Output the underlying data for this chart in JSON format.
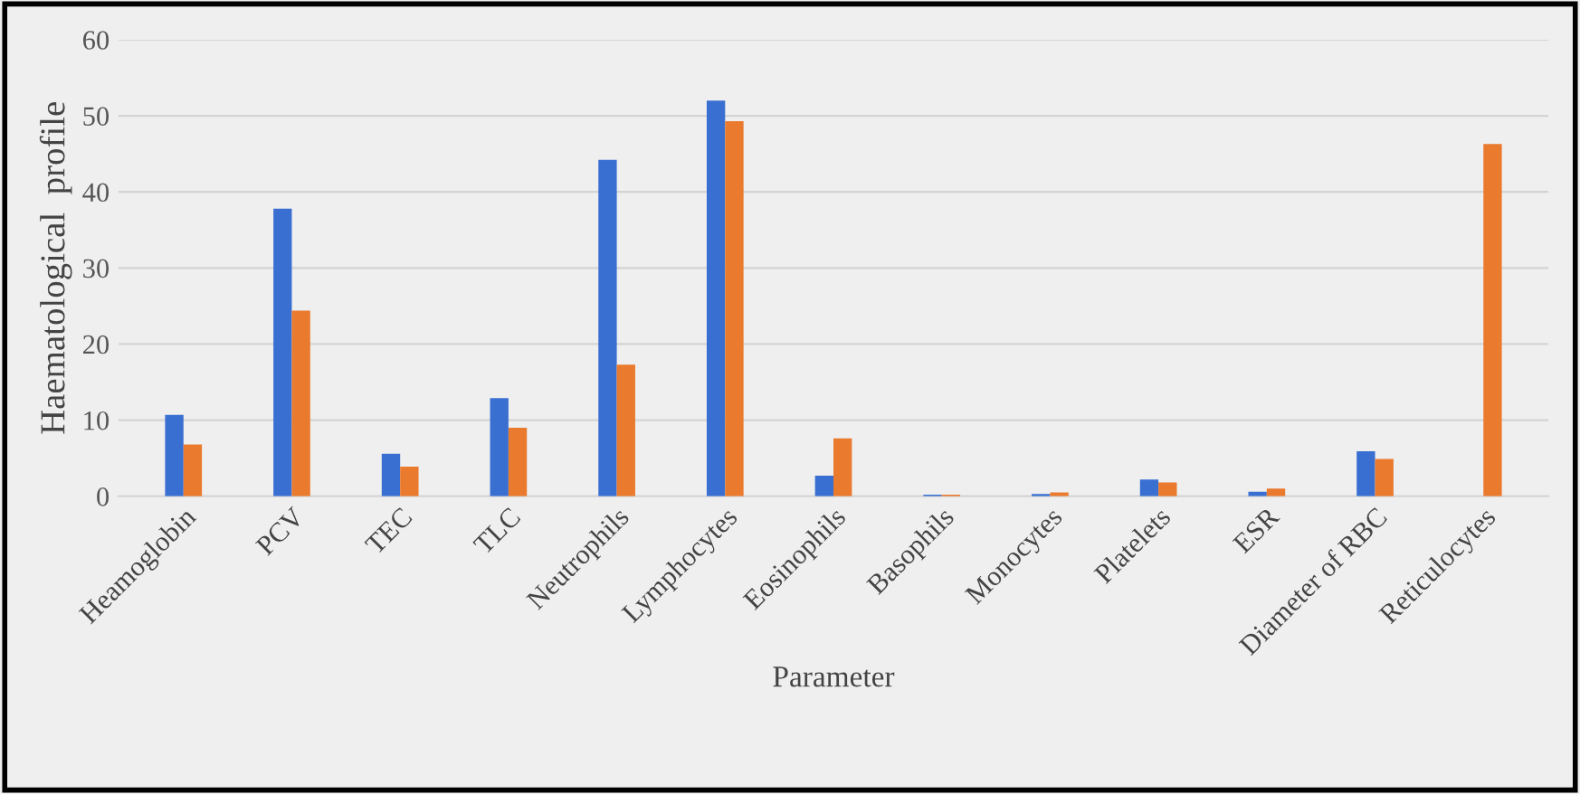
{
  "chart_data": {
    "type": "bar",
    "xlabel": "Parameter",
    "ylabel": "Haematological  profile",
    "categories": [
      "Heamoglobin",
      "PCV",
      "TEC",
      "TLC",
      "Neutrophils",
      "Lymphocytes",
      "Eosinophils",
      "Basophils",
      "Monocytes",
      "Platelets",
      "ESR",
      "Diameter of RBC",
      "Reticulocytes"
    ],
    "series": [
      {
        "color": "#3a6fd2",
        "values": [
          10.7,
          37.8,
          5.6,
          12.9,
          44.2,
          52,
          2.7,
          0.2,
          0.3,
          2.2,
          0.6,
          5.9,
          0
        ]
      },
      {
        "color": "#ea7a2e",
        "values": [
          6.8,
          24.4,
          3.9,
          9,
          17.3,
          49.3,
          7.6,
          0.2,
          0.5,
          1.8,
          1,
          4.9,
          46.3
        ]
      }
    ],
    "ylim": [
      0,
      60
    ],
    "yticks": [
      0,
      10,
      20,
      30,
      40,
      50,
      60
    ],
    "grid": "y"
  }
}
